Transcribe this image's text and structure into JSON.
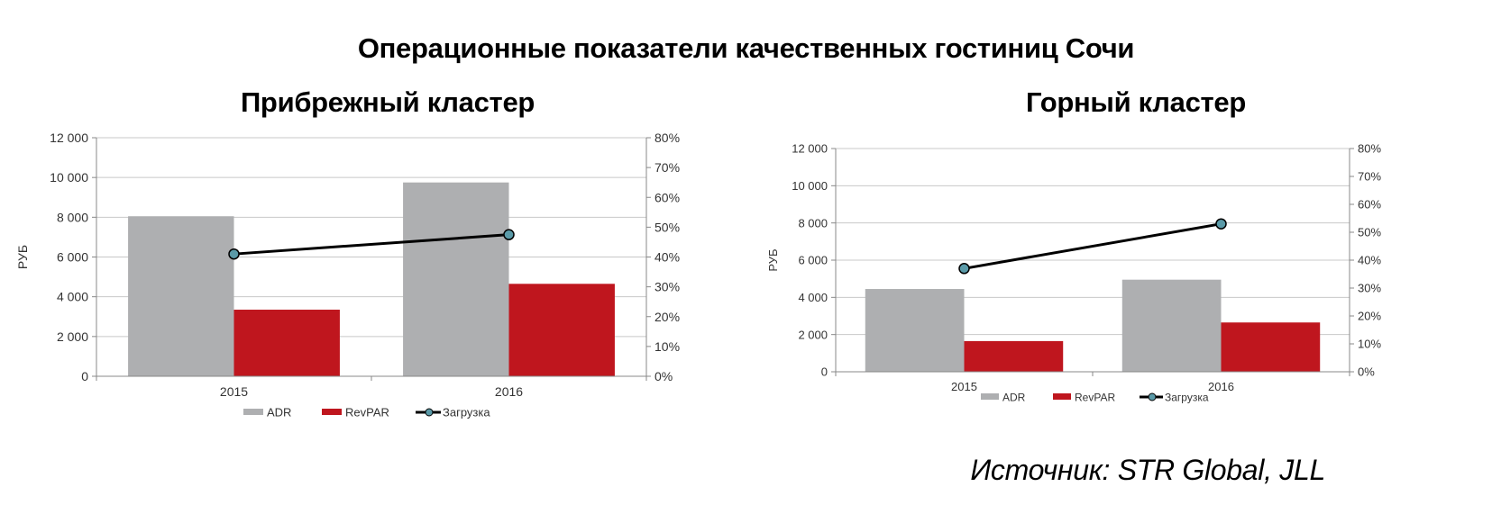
{
  "title": "Операционные показатели качественных гостиниц Сочи",
  "source": "Источник: STR Global, JLL",
  "colors": {
    "adr": "#aeafb1",
    "revpar": "#bf161e",
    "load_line": "#000000",
    "load_marker": "#5a9aa8"
  },
  "chart_data": [
    {
      "type": "bar",
      "title": "Прибрежный кластер",
      "categories": [
        "2015",
        "2016"
      ],
      "ylabel": "РУБ",
      "ylim": [
        0,
        12000
      ],
      "y_ticks": [
        "0",
        "2 000",
        "4 000",
        "6 000",
        "8 000",
        "10 000",
        "12 000"
      ],
      "y2lim": [
        0,
        80
      ],
      "y2_ticks": [
        "0%",
        "10%",
        "20%",
        "30%",
        "40%",
        "50%",
        "60%",
        "70%",
        "80%"
      ],
      "series": [
        {
          "name": "ADR",
          "type": "bar",
          "axis": "left",
          "values": [
            8050,
            9750
          ]
        },
        {
          "name": "RevPAR",
          "type": "bar",
          "axis": "left",
          "values": [
            3350,
            4650
          ]
        },
        {
          "name": "Загрузка",
          "type": "line",
          "axis": "right",
          "unit": "%",
          "values": [
            41,
            47.5
          ]
        }
      ],
      "grid": true,
      "legend": "bottom"
    },
    {
      "type": "bar",
      "title": "Горный кластер",
      "categories": [
        "2015",
        "2016"
      ],
      "ylabel": "РУБ",
      "ylim": [
        0,
        12000
      ],
      "y_ticks": [
        "0",
        "2 000",
        "4 000",
        "6 000",
        "8 000",
        "10 000",
        "12 000"
      ],
      "y2lim": [
        0,
        80
      ],
      "y2_ticks": [
        "0%",
        "10%",
        "20%",
        "30%",
        "40%",
        "50%",
        "60%",
        "70%",
        "80%"
      ],
      "series": [
        {
          "name": "ADR",
          "type": "bar",
          "axis": "left",
          "values": [
            4450,
            4950
          ]
        },
        {
          "name": "RevPAR",
          "type": "bar",
          "axis": "left",
          "values": [
            1650,
            2650
          ]
        },
        {
          "name": "Загрузка",
          "type": "line",
          "axis": "right",
          "unit": "%",
          "values": [
            37,
            53
          ]
        }
      ],
      "grid": true,
      "legend": "bottom"
    }
  ]
}
